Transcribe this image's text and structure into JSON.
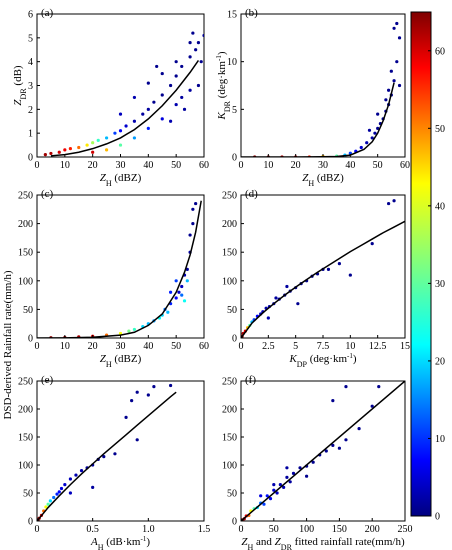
{
  "figure": {
    "shared_ylabel": "DSD-derived Rainfall rate(mm/h)",
    "colorbar": {
      "ticks": [
        "0",
        "10",
        "20",
        "30",
        "40",
        "50",
        "60"
      ],
      "range": [
        0,
        65
      ],
      "colormap": "jet"
    }
  },
  "chart_data": [
    {
      "id": "a",
      "panel_label": "(a)",
      "type": "scatter",
      "xlabel": "Z_H (dBZ)",
      "ylabel": "Z_DR (dB)",
      "xlim": [
        0,
        60
      ],
      "ylim": [
        0,
        6
      ],
      "xticks": [
        "0",
        "10",
        "20",
        "30",
        "40",
        "50",
        "60"
      ],
      "yticks": [
        "0",
        "1",
        "2",
        "3",
        "4",
        "5",
        "6"
      ],
      "fit_curve": {
        "x": [
          5,
          10,
          15,
          20,
          25,
          30,
          35,
          40,
          45,
          50,
          55,
          58
        ],
        "y": [
          0.05,
          0.1,
          0.2,
          0.35,
          0.55,
          0.8,
          1.15,
          1.6,
          2.15,
          2.8,
          3.55,
          4.05
        ]
      },
      "points": {
        "x": [
          3,
          5,
          8,
          10,
          12,
          15,
          18,
          20,
          22,
          25,
          28,
          30,
          32,
          35,
          38,
          40,
          42,
          45,
          48,
          50,
          52,
          55,
          57,
          58,
          60,
          20,
          25,
          30,
          35,
          40,
          45,
          50,
          55,
          40,
          45,
          50,
          55,
          52,
          58,
          48,
          53,
          56,
          59,
          35,
          30,
          43
        ],
        "y": [
          0.1,
          0.15,
          0.2,
          0.3,
          0.35,
          0.4,
          0.5,
          0.6,
          0.7,
          0.8,
          1.0,
          1.1,
          1.3,
          1.5,
          1.8,
          2.0,
          2.3,
          2.6,
          3.0,
          3.4,
          3.8,
          4.2,
          4.5,
          4.8,
          5.1,
          0.2,
          0.3,
          0.5,
          0.8,
          1.2,
          1.6,
          2.2,
          2.8,
          3.1,
          3.5,
          4.0,
          4.8,
          2.5,
          3.0,
          1.5,
          2.0,
          5.2,
          4.0,
          2.5,
          1.8,
          3.8
        ],
        "density": [
          63,
          62,
          60,
          58,
          55,
          50,
          42,
          35,
          28,
          20,
          12,
          8,
          5,
          3,
          2,
          2,
          1,
          1,
          1,
          1,
          1,
          1,
          1,
          1,
          1,
          60,
          45,
          30,
          18,
          10,
          6,
          3,
          2,
          1,
          1,
          1,
          1,
          2,
          1,
          3,
          2,
          1,
          1,
          3,
          4,
          1
        ]
      }
    },
    {
      "id": "b",
      "panel_label": "(b)",
      "type": "scatter",
      "xlabel": "Z_H (dBZ)",
      "ylabel": "K_DR (deg·km⁻¹)",
      "xlim": [
        0,
        60
      ],
      "ylim": [
        0,
        15
      ],
      "xticks": [
        "0",
        "10",
        "20",
        "30",
        "40",
        "50",
        "60"
      ],
      "yticks": [
        "0",
        "5",
        "10",
        "15"
      ],
      "fit_curve": {
        "x": [
          0,
          10,
          20,
          30,
          35,
          40,
          45,
          48,
          50,
          52,
          54,
          56
        ],
        "y": [
          0,
          0,
          0,
          0.02,
          0.05,
          0.2,
          0.8,
          1.6,
          2.5,
          3.8,
          5.5,
          7.8
        ]
      },
      "points": {
        "x": [
          5,
          10,
          15,
          20,
          25,
          30,
          35,
          38,
          40,
          42,
          44,
          46,
          48,
          49,
          50,
          51,
          52,
          53,
          54,
          55,
          56,
          57,
          58,
          55,
          56,
          57,
          58,
          53,
          54,
          50,
          47
        ],
        "y": [
          0,
          0,
          0,
          0,
          0,
          0.05,
          0.1,
          0.2,
          0.4,
          0.6,
          1.0,
          1.5,
          2.0,
          2.5,
          3.0,
          3.5,
          4.0,
          4.8,
          5.5,
          6.5,
          8.0,
          10.0,
          12.5,
          9.0,
          13.5,
          14.0,
          7.5,
          6.0,
          7.0,
          4.5,
          2.8
        ],
        "density": [
          64,
          63,
          62,
          60,
          55,
          45,
          30,
          20,
          12,
          8,
          5,
          3,
          2,
          2,
          1,
          1,
          1,
          1,
          1,
          1,
          1,
          1,
          1,
          1,
          1,
          1,
          1,
          1,
          1,
          1,
          2
        ]
      }
    },
    {
      "id": "c",
      "panel_label": "(c)",
      "type": "scatter",
      "xlabel": "Z_H (dBZ)",
      "ylabel": "",
      "xlim": [
        0,
        60
      ],
      "ylim": [
        0,
        250
      ],
      "xticks": [
        "0",
        "10",
        "20",
        "30",
        "40",
        "50",
        "60"
      ],
      "yticks": [
        "0",
        "50",
        "100",
        "150",
        "200",
        "250"
      ],
      "fit_curve": {
        "x": [
          0,
          10,
          20,
          30,
          35,
          40,
          45,
          50,
          53,
          55,
          57,
          59
        ],
        "y": [
          0.1,
          0.3,
          1.2,
          5,
          10,
          22,
          42,
          80,
          115,
          145,
          185,
          240
        ]
      },
      "points": {
        "x": [
          5,
          10,
          15,
          20,
          25,
          30,
          33,
          35,
          38,
          40,
          42,
          44,
          45,
          46,
          48,
          50,
          51,
          52,
          53,
          54,
          55,
          56,
          57,
          55,
          56,
          54,
          52,
          50,
          48,
          47,
          53
        ],
        "y": [
          0.5,
          1,
          2,
          3,
          5,
          8,
          12,
          15,
          20,
          25,
          30,
          35,
          40,
          50,
          60,
          70,
          80,
          90,
          110,
          120,
          150,
          200,
          235,
          180,
          225,
          100,
          75,
          100,
          80,
          45,
          65
        ],
        "density": [
          64,
          63,
          62,
          58,
          50,
          40,
          32,
          28,
          22,
          20,
          18,
          25,
          22,
          15,
          10,
          8,
          5,
          4,
          3,
          2,
          2,
          1,
          1,
          1,
          1,
          20,
          15,
          12,
          10,
          20,
          25
        ]
      }
    },
    {
      "id": "d",
      "panel_label": "(d)",
      "type": "scatter",
      "xlabel": "K_DP (deg·km⁻¹)",
      "ylabel": "",
      "xlim": [
        0,
        15
      ],
      "ylim": [
        0,
        250
      ],
      "xticks": [
        "0",
        "2.5",
        "5",
        "7.5",
        "10",
        "12.5",
        "15"
      ],
      "yticks": [
        "0",
        "50",
        "100",
        "150",
        "200",
        "250"
      ],
      "fit_curve": {
        "x": [
          0,
          1,
          2,
          3,
          4,
          5,
          6,
          7,
          8,
          9,
          10,
          11,
          12,
          13,
          14,
          15
        ],
        "y": [
          0,
          26,
          44,
          60,
          75,
          89,
          102,
          115,
          127,
          139,
          151,
          162,
          173,
          184,
          194,
          204
        ]
      },
      "points": {
        "x": [
          0.1,
          0.2,
          0.4,
          0.6,
          0.8,
          1.0,
          1.2,
          1.5,
          1.8,
          2.0,
          2.3,
          2.6,
          3.0,
          3.5,
          4.0,
          4.5,
          5.0,
          5.5,
          6.0,
          7.0,
          8.0,
          9.0,
          10.0,
          12.0,
          13.5,
          14.0,
          3.2,
          4.2,
          2.5,
          5.2,
          6.5,
          7.5
        ],
        "y": [
          3,
          8,
          12,
          18,
          22,
          28,
          32,
          38,
          42,
          46,
          52,
          55,
          60,
          68,
          75,
          82,
          88,
          95,
          100,
          112,
          120,
          130,
          110,
          165,
          235,
          240,
          70,
          90,
          35,
          60,
          108,
          120
        ],
        "density": [
          64,
          62,
          58,
          45,
          30,
          20,
          12,
          8,
          5,
          4,
          3,
          3,
          2,
          2,
          1,
          1,
          1,
          1,
          1,
          1,
          1,
          1,
          1,
          1,
          1,
          1,
          2,
          2,
          3,
          1,
          1,
          1
        ]
      }
    },
    {
      "id": "e",
      "panel_label": "(e)",
      "type": "scatter",
      "xlabel": "A_H (dB·km⁻¹)",
      "ylabel": "",
      "xlim": [
        0,
        1.5
      ],
      "ylim": [
        0,
        250
      ],
      "xticks": [
        "0",
        "0.5",
        "1.0",
        "1.5"
      ],
      "yticks": [
        "0",
        "50",
        "100",
        "150",
        "200",
        "250"
      ],
      "fit_curve": {
        "x": [
          0,
          0.1,
          0.2,
          0.3,
          0.4,
          0.5,
          0.6,
          0.7,
          0.8,
          0.9,
          1.0,
          1.1,
          1.2,
          1.25
        ],
        "y": [
          0,
          24,
          45,
          65,
          84,
          102,
          120,
          137,
          154,
          171,
          188,
          205,
          222,
          230
        ]
      },
      "points": {
        "x": [
          0.01,
          0.02,
          0.04,
          0.06,
          0.08,
          0.1,
          0.12,
          0.15,
          0.18,
          0.2,
          0.22,
          0.25,
          0.3,
          0.35,
          0.4,
          0.45,
          0.5,
          0.55,
          0.6,
          0.7,
          0.8,
          0.85,
          0.9,
          1.0,
          1.05,
          1.2,
          0.3,
          0.5,
          0.9
        ],
        "y": [
          2,
          5,
          10,
          18,
          25,
          30,
          36,
          42,
          48,
          52,
          58,
          65,
          75,
          82,
          90,
          95,
          100,
          110,
          115,
          120,
          185,
          215,
          230,
          225,
          240,
          242,
          50,
          60,
          145
        ],
        "density": [
          64,
          63,
          60,
          50,
          40,
          30,
          22,
          15,
          10,
          8,
          6,
          5,
          4,
          3,
          3,
          2,
          2,
          1,
          1,
          1,
          1,
          1,
          1,
          1,
          1,
          1,
          4,
          2,
          1
        ]
      }
    },
    {
      "id": "f",
      "panel_label": "(f)",
      "type": "scatter",
      "xlabel": "Z_H and Z_DR fitted rainfall rate(mm/h)",
      "ylabel": "",
      "xlim": [
        0,
        250
      ],
      "ylim": [
        0,
        250
      ],
      "xticks": [
        "0",
        "50",
        "100",
        "150",
        "200",
        "250"
      ],
      "yticks": [
        "0",
        "50",
        "100",
        "150",
        "200",
        "250"
      ],
      "fit_curve": {
        "x": [
          0,
          250
        ],
        "y": [
          0,
          250
        ]
      },
      "points": {
        "x": [
          2,
          5,
          8,
          12,
          15,
          20,
          25,
          30,
          35,
          40,
          45,
          50,
          55,
          60,
          65,
          70,
          75,
          80,
          90,
          100,
          110,
          120,
          130,
          140,
          150,
          160,
          180,
          200,
          210,
          160,
          140,
          100,
          70,
          50,
          30
        ],
        "y": [
          2,
          4,
          9,
          10,
          18,
          22,
          24,
          32,
          30,
          45,
          40,
          55,
          50,
          65,
          60,
          78,
          70,
          85,
          95,
          98,
          105,
          118,
          125,
          135,
          130,
          145,
          165,
          205,
          240,
          240,
          215,
          80,
          95,
          65,
          45
        ],
        "density": [
          64,
          62,
          58,
          50,
          40,
          30,
          22,
          15,
          12,
          9,
          7,
          5,
          4,
          3,
          3,
          2,
          2,
          2,
          1,
          1,
          1,
          1,
          1,
          1,
          1,
          1,
          1,
          1,
          1,
          1,
          1,
          1,
          2,
          3,
          6
        ]
      }
    }
  ]
}
